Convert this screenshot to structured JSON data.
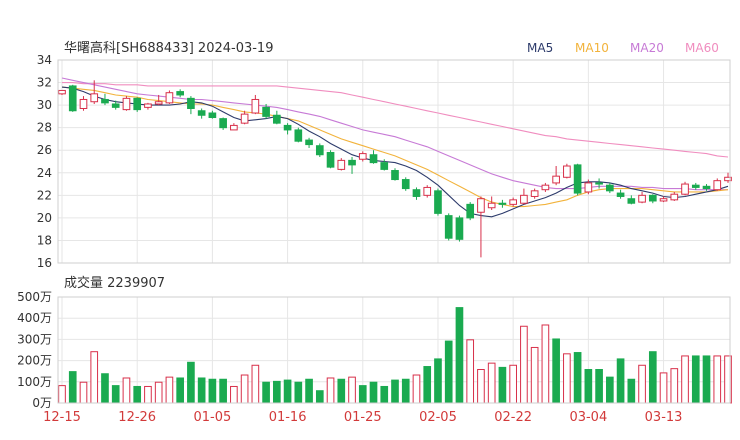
{
  "header": {
    "title": "华曙高科[SH688433] 2024-03-19"
  },
  "legend": [
    {
      "label": "MA5",
      "color": "#2d3b6b"
    },
    {
      "label": "MA10",
      "color": "#f2b33c"
    },
    {
      "label": "MA20",
      "color": "#c77ad6"
    },
    {
      "label": "MA60",
      "color": "#f08dbf"
    }
  ],
  "volume_header": {
    "label": "成交量 2239907"
  },
  "colors": {
    "up": "#d8304a",
    "down": "#1aaa50"
  },
  "chart_data": [
    {
      "type": "candlestick",
      "y_ticks": [
        "34",
        "32",
        "30",
        "28",
        "26",
        "24",
        "22",
        "20",
        "18",
        "16"
      ],
      "ylim": [
        16,
        34
      ],
      "x_tick_labels": [
        "12-15",
        "12-26",
        "01-05",
        "01-16",
        "01-25",
        "02-05",
        "02-22",
        "03-04",
        "03-13"
      ],
      "x_tick_index": [
        0,
        7,
        14,
        21,
        28,
        35,
        42,
        49,
        56
      ],
      "candles": [
        [
          31.0,
          31.3,
          31.3,
          30.9
        ],
        [
          31.7,
          29.5,
          31.8,
          29.4
        ],
        [
          29.7,
          30.5,
          30.8,
          29.5
        ],
        [
          30.3,
          31.0,
          32.2,
          30.1
        ],
        [
          30.5,
          30.2,
          31.0,
          30.0
        ],
        [
          30.1,
          29.8,
          30.4,
          29.6
        ],
        [
          29.6,
          30.6,
          30.8,
          29.5
        ],
        [
          30.6,
          29.6,
          30.7,
          29.4
        ],
        [
          29.8,
          30.1,
          30.2,
          29.6
        ],
        [
          30.1,
          30.3,
          30.9,
          30.0
        ],
        [
          30.2,
          31.1,
          31.3,
          30.1
        ],
        [
          31.2,
          30.9,
          31.4,
          30.7
        ],
        [
          30.6,
          29.7,
          30.8,
          29.2
        ],
        [
          29.5,
          29.1,
          29.7,
          28.8
        ],
        [
          29.3,
          28.9,
          29.5,
          28.8
        ],
        [
          28.8,
          28.0,
          28.9,
          27.8
        ],
        [
          27.8,
          28.2,
          28.4,
          27.8
        ],
        [
          28.4,
          29.2,
          29.5,
          28.3
        ],
        [
          29.3,
          30.5,
          30.9,
          29.2
        ],
        [
          29.8,
          29.0,
          30.1,
          28.8
        ],
        [
          29.1,
          28.4,
          29.5,
          28.3
        ],
        [
          28.2,
          27.8,
          28.4,
          27.4
        ],
        [
          27.8,
          26.8,
          28.0,
          26.7
        ],
        [
          26.9,
          26.5,
          27.1,
          26.2
        ],
        [
          26.4,
          25.6,
          26.6,
          25.4
        ],
        [
          25.8,
          24.5,
          26.0,
          24.4
        ],
        [
          24.3,
          25.1,
          25.3,
          24.2
        ],
        [
          25.1,
          24.7,
          25.4,
          23.9
        ],
        [
          25.2,
          25.7,
          25.9,
          25.0
        ],
        [
          25.6,
          24.9,
          26.0,
          24.8
        ],
        [
          24.9,
          24.3,
          25.2,
          24.2
        ],
        [
          24.2,
          23.4,
          24.4,
          23.3
        ],
        [
          23.4,
          22.6,
          23.6,
          22.4
        ],
        [
          22.5,
          21.9,
          22.7,
          21.6
        ],
        [
          22.0,
          22.7,
          22.9,
          21.8
        ],
        [
          22.4,
          20.4,
          22.6,
          20.2
        ],
        [
          20.2,
          18.2,
          20.4,
          18.0
        ],
        [
          20.0,
          18.1,
          20.2,
          17.9
        ],
        [
          21.2,
          20.0,
          21.4,
          19.8
        ],
        [
          20.5,
          21.7,
          21.9,
          16.5
        ],
        [
          20.9,
          21.3,
          21.9,
          20.7
        ],
        [
          21.3,
          21.2,
          21.6,
          20.9
        ],
        [
          21.2,
          21.6,
          21.8,
          21.0
        ],
        [
          21.3,
          22.0,
          22.6,
          21.2
        ],
        [
          21.9,
          22.4,
          22.6,
          21.7
        ],
        [
          22.5,
          22.9,
          23.1,
          22.3
        ],
        [
          23.1,
          23.7,
          24.6,
          22.9
        ],
        [
          23.6,
          24.6,
          24.8,
          23.5
        ],
        [
          24.7,
          22.2,
          24.8,
          22.0
        ],
        [
          22.3,
          23.1,
          23.4,
          22.1
        ],
        [
          23.1,
          23.0,
          23.5,
          22.6
        ],
        [
          22.9,
          22.4,
          23.1,
          22.2
        ],
        [
          22.2,
          21.9,
          22.5,
          21.7
        ],
        [
          21.7,
          21.3,
          22.0,
          21.2
        ],
        [
          21.4,
          22.0,
          22.3,
          21.3
        ],
        [
          22.0,
          21.5,
          22.1,
          21.3
        ],
        [
          21.5,
          21.7,
          21.9,
          21.4
        ],
        [
          21.6,
          22.1,
          22.3,
          21.5
        ],
        [
          22.1,
          23.0,
          23.2,
          22.0
        ],
        [
          22.9,
          22.7,
          23.1,
          22.5
        ],
        [
          22.8,
          22.6,
          23.0,
          22.4
        ],
        [
          22.5,
          23.3,
          23.5,
          22.4
        ],
        [
          23.3,
          23.6,
          24.0,
          23.1
        ]
      ],
      "ma5": [
        31.6,
        31.5,
        31.2,
        30.8,
        30.5,
        30.3,
        30.2,
        30.1,
        30.0,
        30.0,
        30.0,
        30.1,
        30.3,
        30.2,
        29.9,
        29.4,
        28.9,
        28.6,
        28.7,
        28.8,
        29.0,
        28.8,
        28.3,
        27.7,
        27.2,
        26.6,
        26.1,
        25.6,
        25.3,
        25.1,
        25.0,
        24.9,
        24.6,
        24.2,
        23.6,
        22.9,
        22.0,
        21.1,
        20.4,
        20.2,
        20.1,
        20.4,
        20.8,
        21.2,
        21.5,
        21.8,
        22.2,
        22.7,
        23.1,
        23.2,
        23.2,
        23.1,
        22.9,
        22.6,
        22.4,
        22.2,
        21.9,
        21.8,
        21.9,
        22.1,
        22.3,
        22.5,
        22.8
      ],
      "ma10": [
        31.6,
        31.5,
        31.4,
        31.3,
        31.1,
        30.9,
        30.8,
        30.7,
        30.5,
        30.4,
        30.3,
        30.2,
        30.1,
        30.1,
        30.0,
        29.8,
        29.6,
        29.4,
        29.3,
        29.2,
        29.0,
        28.8,
        28.6,
        28.2,
        27.8,
        27.4,
        27.0,
        26.7,
        26.4,
        26.1,
        25.8,
        25.5,
        25.1,
        24.7,
        24.3,
        23.8,
        23.3,
        22.8,
        22.3,
        21.8,
        21.4,
        21.2,
        21.0,
        21.0,
        21.1,
        21.2,
        21.4,
        21.6,
        22.0,
        22.3,
        22.5,
        22.6,
        22.6,
        22.6,
        22.6,
        22.5,
        22.4,
        22.3,
        22.3,
        22.3,
        22.3,
        22.4,
        22.5
      ],
      "ma20": [
        32.4,
        32.2,
        32.0,
        31.8,
        31.6,
        31.4,
        31.2,
        31.0,
        30.9,
        30.8,
        30.7,
        30.6,
        30.5,
        30.5,
        30.4,
        30.3,
        30.2,
        30.1,
        30.0,
        29.9,
        29.8,
        29.6,
        29.4,
        29.2,
        29.0,
        28.7,
        28.4,
        28.1,
        27.8,
        27.6,
        27.4,
        27.2,
        26.9,
        26.6,
        26.3,
        25.9,
        25.5,
        25.1,
        24.7,
        24.3,
        23.9,
        23.6,
        23.3,
        23.1,
        22.9,
        22.7,
        22.6,
        22.6,
        22.6,
        22.7,
        22.8,
        22.8,
        22.8,
        22.8,
        22.7,
        22.7,
        22.6,
        22.6,
        22.6,
        22.5,
        22.5,
        22.5,
        22.5
      ],
      "ma60": [
        32.0,
        32.0,
        31.9,
        31.9,
        31.9,
        31.8,
        31.8,
        31.8,
        31.7,
        31.7,
        31.7,
        31.7,
        31.7,
        31.7,
        31.7,
        31.7,
        31.7,
        31.7,
        31.7,
        31.7,
        31.7,
        31.6,
        31.5,
        31.4,
        31.3,
        31.2,
        31.1,
        30.9,
        30.7,
        30.5,
        30.3,
        30.1,
        29.9,
        29.7,
        29.5,
        29.3,
        29.1,
        28.9,
        28.7,
        28.5,
        28.3,
        28.1,
        27.9,
        27.7,
        27.5,
        27.3,
        27.2,
        27.0,
        26.9,
        26.8,
        26.7,
        26.6,
        26.5,
        26.4,
        26.3,
        26.2,
        26.1,
        26.0,
        25.9,
        25.8,
        25.7,
        25.5,
        25.4
      ]
    },
    {
      "type": "bar",
      "y_ticks": [
        "500万",
        "400万",
        "300万",
        "200万",
        "100万",
        "0万"
      ],
      "ylim": [
        0,
        500
      ],
      "values": [
        82,
        148,
        98,
        242,
        138,
        82,
        118,
        78,
        78,
        98,
        122,
        118,
        192,
        118,
        112,
        112,
        78,
        132,
        178,
        98,
        102,
        108,
        98,
        112,
        58,
        118,
        112,
        122,
        82,
        98,
        78,
        108,
        112,
        132,
        172,
        208,
        292,
        450,
        298,
        158,
        188,
        168,
        178,
        362,
        262,
        368,
        302,
        232,
        238,
        158,
        158,
        122,
        208,
        112,
        178,
        242,
        142,
        162,
        222,
        222,
        222,
        222,
        222
      ],
      "direction": [
        "up",
        "down",
        "up",
        "up",
        "down",
        "down",
        "up",
        "down",
        "up",
        "up",
        "up",
        "down",
        "down",
        "down",
        "down",
        "down",
        "up",
        "up",
        "up",
        "down",
        "down",
        "down",
        "down",
        "down",
        "down",
        "up",
        "down",
        "up",
        "down",
        "down",
        "down",
        "down",
        "down",
        "up",
        "down",
        "down",
        "down",
        "down",
        "up",
        "up",
        "up",
        "down",
        "up",
        "up",
        "up",
        "up",
        "down",
        "up",
        "down",
        "down",
        "down",
        "down",
        "down",
        "down",
        "up",
        "down",
        "up",
        "up",
        "up",
        "down",
        "down",
        "up",
        "up"
      ]
    }
  ]
}
